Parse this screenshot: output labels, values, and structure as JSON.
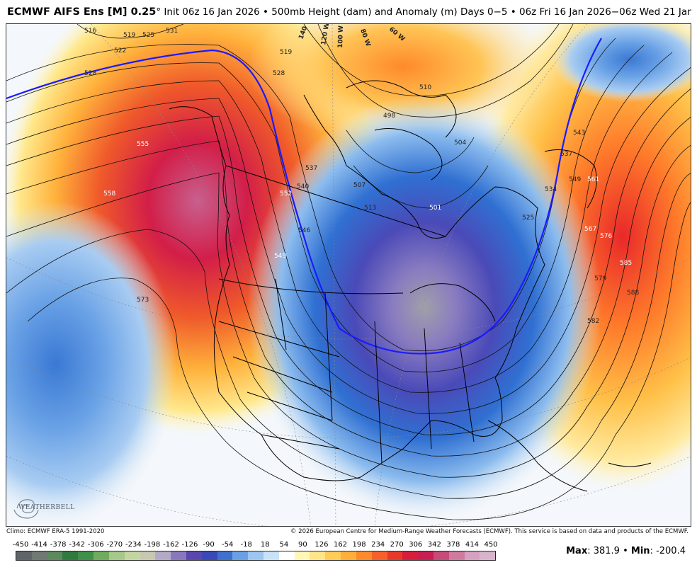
{
  "header": {
    "model": "ECMWF AIFS Ens [M] 0.25",
    "degree": "°",
    "details": " Init 06z 16 Jan 2026 • 500mb Height (dam) and Anomaly (m)  Days 0−5 • 06z Fri 16 Jan 2026−06z Wed 21 Jan 2026"
  },
  "map": {
    "height_contour_labels": [
      "516",
      "519",
      "522",
      "525",
      "531",
      "528",
      "519",
      "528",
      "510",
      "504",
      "507",
      "513",
      "501",
      "498",
      "555",
      "558",
      "552",
      "549",
      "546",
      "573",
      "537",
      "543",
      "549",
      "561",
      "567",
      "576",
      "585",
      "579",
      "588",
      "582",
      "534",
      "540",
      "537",
      "525"
    ],
    "longitude_labels": [
      "140 W",
      "120 W",
      "100 W",
      "80 W",
      "60 W"
    ],
    "anomaly_center_label": "501"
  },
  "footer": {
    "climo": "Climo: ECMWF ERA-5 1991-2020",
    "copyright": "© 2026 European Centre for Medium-Range Weather Forecasts (ECMWF). This service is based on data and products of the ECMWF."
  },
  "colorbar": {
    "ticks": [
      "-450",
      "-414",
      "-378",
      "-342",
      "-306",
      "-270",
      "-234",
      "-198",
      "-162",
      "-126",
      "-90",
      "-54",
      "-18",
      "18",
      "54",
      "90",
      "126",
      "162",
      "198",
      "234",
      "270",
      "306",
      "342",
      "378",
      "414",
      "450"
    ],
    "colors": [
      "#5f6469",
      "#6f7a72",
      "#5c8a5c",
      "#2f7a3c",
      "#3f9048",
      "#70ab5e",
      "#a6c88a",
      "#c3d6a2",
      "#c6c9b0",
      "#b3a9c8",
      "#8a78be",
      "#5b47b0",
      "#3a48b8",
      "#3f70d0",
      "#6aa0e6",
      "#9cc6f0",
      "#c8e2f8",
      "#ffffff",
      "#fff6b8",
      "#ffe488",
      "#ffcc55",
      "#ffae3a",
      "#ff8a2a",
      "#f8602a",
      "#e8382a",
      "#d81e3a",
      "#c81e52",
      "#c84a78",
      "#d07aa0",
      "#d6a0c0",
      "#d8b4cc"
    ],
    "label_max": "Max",
    "max_value": "381.9",
    "label_min": "Min",
    "min_value": "-200.4",
    "separator": "•"
  },
  "logo": {
    "text": "WEATHERBELL"
  },
  "colors": {
    "zero_line": "#1a1aff",
    "positive_core": "#c81e52",
    "negative_core": "#5b47b0"
  }
}
